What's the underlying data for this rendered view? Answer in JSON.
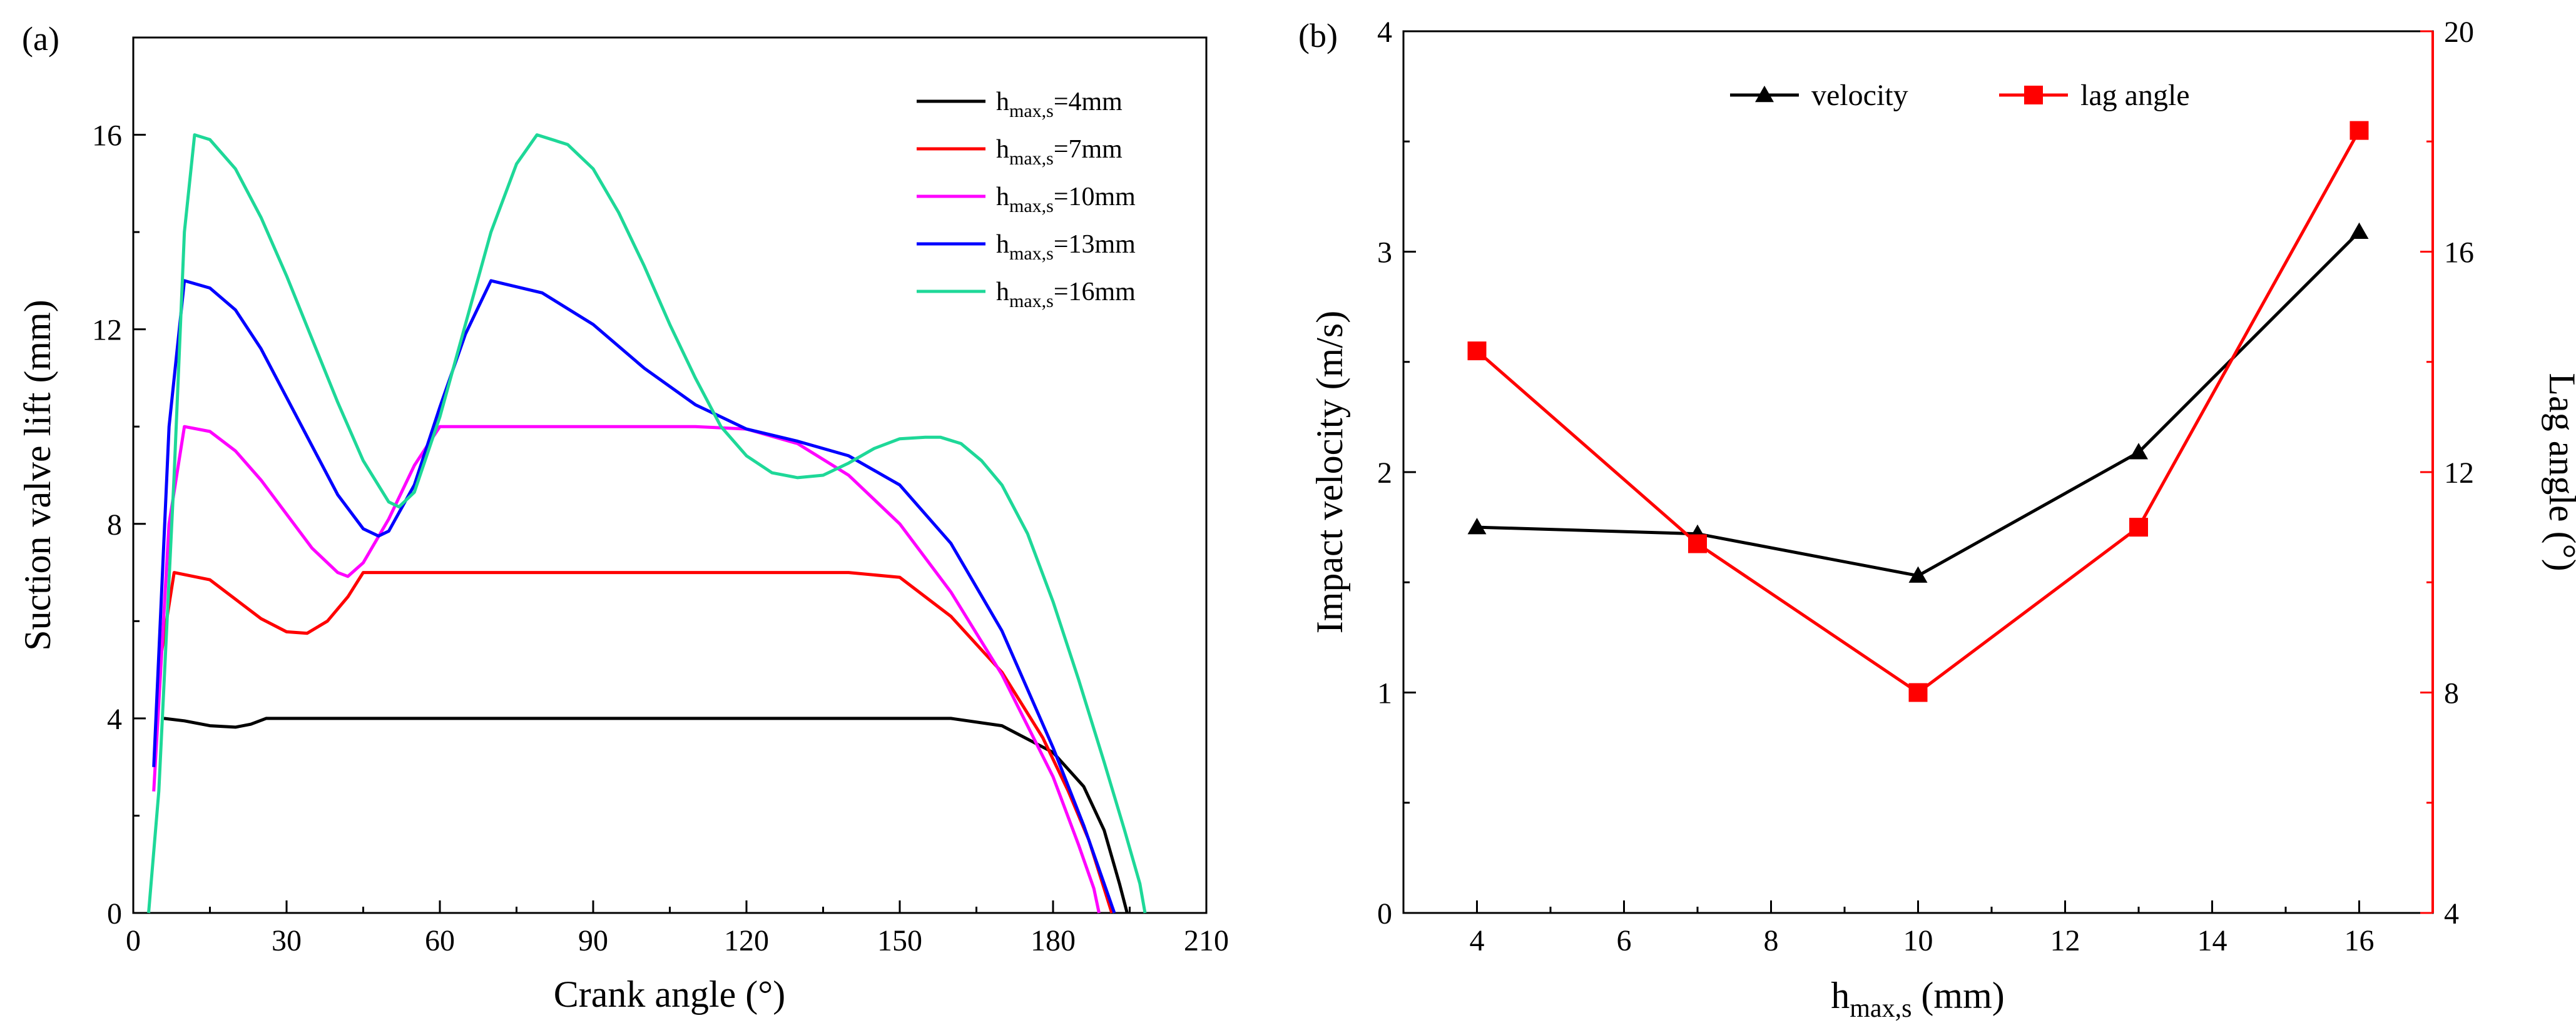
{
  "chart_data": [
    {
      "panel_label": "(a)",
      "type": "line",
      "xlabel": "Crank angle (°)",
      "ylabel": "Suction valve lift (mm)",
      "xlim": [
        0,
        210
      ],
      "ylim": [
        0,
        18
      ],
      "xticks": [
        0,
        30,
        60,
        90,
        120,
        150,
        180,
        210
      ],
      "yticks": [
        0,
        4,
        8,
        12,
        16
      ],
      "legend_position": "top-right",
      "series": [
        {
          "name": "h",
          "subscript": "max,s",
          "suffix": "=4mm",
          "color": "#000000",
          "x": [
            6,
            10,
            15,
            20,
            23,
            26,
            40,
            80,
            120,
            160,
            170,
            180,
            186,
            190,
            193,
            194.5
          ],
          "y": [
            4,
            3.95,
            3.85,
            3.82,
            3.88,
            4,
            4,
            4,
            4,
            4,
            3.85,
            3.3,
            2.6,
            1.7,
            0.6,
            0
          ]
        },
        {
          "name": "h",
          "subscript": "max,s",
          "suffix": "=7mm",
          "color": "#ff0000",
          "x": [
            5,
            8,
            15,
            20,
            25,
            30,
            34,
            38,
            42,
            45,
            60,
            100,
            140,
            150,
            160,
            170,
            178,
            183,
            187,
            190,
            191.5
          ],
          "y": [
            5,
            7,
            6.85,
            6.45,
            6.05,
            5.78,
            5.75,
            6,
            6.5,
            7,
            7,
            7,
            7,
            6.9,
            6.1,
            4.95,
            3.6,
            2.5,
            1.5,
            0.5,
            0
          ]
        },
        {
          "name": "h",
          "subscript": "max,s",
          "suffix": "=10mm",
          "color": "#ff00ff",
          "x": [
            4,
            7,
            10,
            15,
            20,
            25,
            30,
            35,
            40,
            42,
            45,
            50,
            55,
            60,
            80,
            110,
            120,
            130,
            140,
            150,
            160,
            170,
            180,
            185,
            188,
            189
          ],
          "y": [
            2.5,
            8,
            10,
            9.9,
            9.5,
            8.9,
            8.2,
            7.5,
            7,
            6.92,
            7.2,
            8.1,
            9.2,
            10,
            10,
            10,
            9.95,
            9.65,
            9,
            8,
            6.6,
            4.9,
            2.8,
            1.4,
            0.5,
            0
          ]
        },
        {
          "name": "h",
          "subscript": "max,s",
          "suffix": "=13mm",
          "color": "#0000ff",
          "x": [
            4,
            7,
            10,
            15,
            20,
            25,
            30,
            35,
            40,
            45,
            48,
            50,
            55,
            60,
            65,
            70,
            80,
            90,
            100,
            110,
            120,
            130,
            140,
            150,
            160,
            170,
            180,
            186,
            190,
            192
          ],
          "y": [
            3,
            10,
            13,
            12.85,
            12.4,
            11.6,
            10.6,
            9.6,
            8.6,
            7.9,
            7.75,
            7.85,
            8.8,
            10.4,
            11.9,
            13,
            12.75,
            12.1,
            11.2,
            10.45,
            9.95,
            9.7,
            9.4,
            8.8,
            7.6,
            5.8,
            3.4,
            1.8,
            0.6,
            0
          ]
        },
        {
          "name": "h",
          "subscript": "max,s",
          "suffix": "=16mm",
          "color": "#1ed898",
          "x": [
            3,
            5,
            8,
            10,
            12,
            15,
            20,
            25,
            30,
            35,
            40,
            45,
            50,
            52,
            55,
            60,
            65,
            70,
            75,
            79,
            85,
            90,
            95,
            100,
            105,
            110,
            115,
            120,
            125,
            130,
            135,
            140,
            145,
            150,
            155,
            158,
            162,
            166,
            170,
            175,
            180,
            185,
            190,
            194,
            197,
            198
          ],
          "y": [
            0,
            2.5,
            9,
            14,
            16,
            15.9,
            15.3,
            14.3,
            13.1,
            11.8,
            10.5,
            9.3,
            8.45,
            8.35,
            8.65,
            10.2,
            12.1,
            14,
            15.4,
            16,
            15.8,
            15.3,
            14.4,
            13.3,
            12.1,
            11,
            10,
            9.4,
            9.05,
            8.95,
            9,
            9.25,
            9.55,
            9.75,
            9.78,
            9.78,
            9.65,
            9.3,
            8.8,
            7.8,
            6.4,
            4.8,
            3.1,
            1.7,
            0.6,
            0
          ]
        }
      ]
    },
    {
      "panel_label": "(b)",
      "type": "line",
      "xlabel": {
        "main": "h",
        "sub": "max,s",
        "unit": " (mm)"
      },
      "ylabel_left": "Impact velocity (m/s)",
      "ylabel_right": "Lag angle (°)",
      "xlim": [
        3,
        17
      ],
      "ylim_left": [
        0,
        4
      ],
      "ylim_right": [
        4,
        20
      ],
      "xticks": [
        4,
        6,
        8,
        10,
        12,
        14,
        16
      ],
      "yticks_left": [
        0,
        1,
        2,
        3,
        4
      ],
      "yticks_right": [
        4,
        8,
        12,
        16,
        20
      ],
      "legend_position": "top-center",
      "series": [
        {
          "name": "velocity",
          "axis": "left",
          "color": "#000000",
          "marker": "triangle",
          "x": [
            4,
            7,
            10,
            13,
            16
          ],
          "y": [
            1.75,
            1.72,
            1.53,
            2.09,
            3.09
          ]
        },
        {
          "name": "lag angle",
          "axis": "right",
          "color": "#ff0000",
          "marker": "square",
          "x": [
            4,
            7,
            10,
            13,
            16
          ],
          "y": [
            14.2,
            10.7,
            8.0,
            11.0,
            18.2
          ]
        }
      ]
    }
  ]
}
